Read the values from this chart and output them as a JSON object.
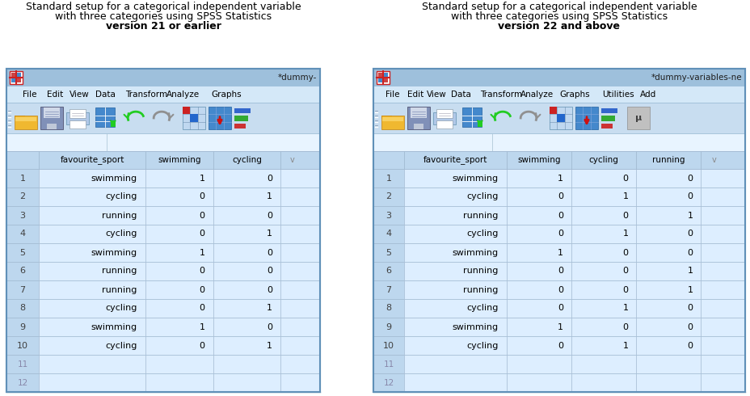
{
  "title_left_line1": "Standard setup for a categorical independent variable",
  "title_left_line2": "with three categories using SPSS Statistics",
  "title_left_line3": "version 21 or earlier",
  "title_right_line1": "Standard setup for a categorical independent variable",
  "title_right_line2": "with three categories using SPSS Statistics",
  "title_right_line3": "version 22 and above",
  "bg_color": "#ffffff",
  "titlebar_bg": "#adc8e8",
  "menubar_bg": "#d6e8f8",
  "toolbar_bg": "#c8ddf0",
  "toolbar_border": "#b0c8e0",
  "formulabar_bg": "#e8f4ff",
  "formulabar_border": "#b0c8e0",
  "grid_header_bg": "#bdd7ee",
  "grid_row_light": "#ddeeff",
  "grid_row_dark": "#c8ddf0",
  "grid_rownum_bg": "#bdd7ee",
  "grid_line_color": "#a0b8d0",
  "grid_outer_border": "#8aaac0",
  "window_border": "#6090b8",
  "text_dark": "#000000",
  "text_rownum": "#404040",
  "text_rownum_empty": "#8888aa",
  "left_cols": [
    "favourite_sport",
    "swimming",
    "cycling"
  ],
  "right_cols": [
    "favourite_sport",
    "swimming",
    "cycling",
    "running"
  ],
  "data_left": [
    [
      "swimming",
      "1",
      "0"
    ],
    [
      "cycling",
      "0",
      "1"
    ],
    [
      "running",
      "0",
      "0"
    ],
    [
      "cycling",
      "0",
      "1"
    ],
    [
      "swimming",
      "1",
      "0"
    ],
    [
      "running",
      "0",
      "0"
    ],
    [
      "running",
      "0",
      "0"
    ],
    [
      "cycling",
      "0",
      "1"
    ],
    [
      "swimming",
      "1",
      "0"
    ],
    [
      "cycling",
      "0",
      "1"
    ]
  ],
  "data_right": [
    [
      "swimming",
      "1",
      "0",
      "0"
    ],
    [
      "cycling",
      "0",
      "1",
      "0"
    ],
    [
      "running",
      "0",
      "0",
      "1"
    ],
    [
      "cycling",
      "0",
      "1",
      "0"
    ],
    [
      "swimming",
      "1",
      "0",
      "0"
    ],
    [
      "running",
      "0",
      "0",
      "1"
    ],
    [
      "running",
      "0",
      "0",
      "1"
    ],
    [
      "cycling",
      "0",
      "1",
      "0"
    ],
    [
      "swimming",
      "1",
      "0",
      "0"
    ],
    [
      "cycling",
      "0",
      "1",
      "0"
    ]
  ],
  "window_title_left": "*dummy-",
  "window_title_right": "*dummy-variables-ne",
  "menu_left": [
    "File",
    "Edit",
    "View",
    "Data",
    "Transform",
    "Analyze",
    "Graphs"
  ],
  "menu_right": [
    "File",
    "Edit",
    "View",
    "Data",
    "Transform",
    "Analyze",
    "Graphs",
    "Utilities",
    "Add"
  ]
}
